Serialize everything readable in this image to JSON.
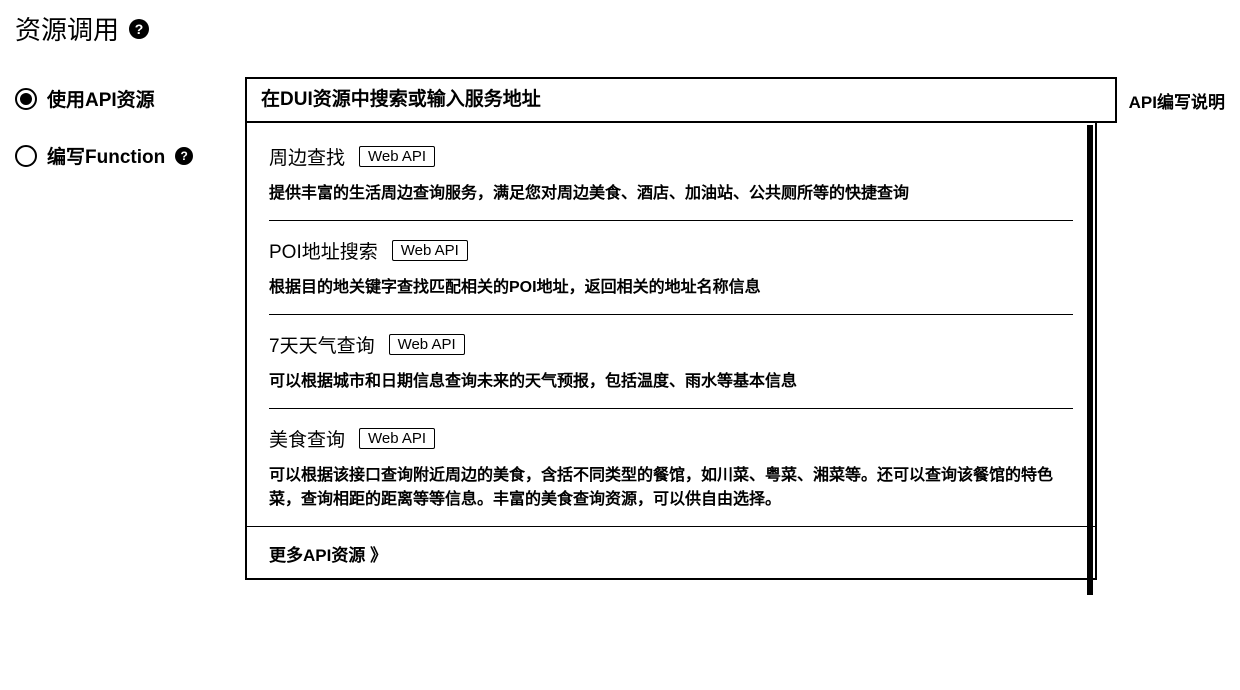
{
  "colors": {
    "text": "#000000",
    "background": "#ffffff",
    "border": "#000000"
  },
  "typography": {
    "title_fontsize": 26,
    "radio_label_fontsize": 19,
    "search_fontsize": 19,
    "item_title_fontsize": 19,
    "item_desc_fontsize": 16,
    "link_fontsize": 17,
    "badge_fontsize": 15
  },
  "header": {
    "title": "资源调用",
    "help_tooltip": "?"
  },
  "radios": {
    "use_api": {
      "label": "使用API资源",
      "selected": true
    },
    "write_function": {
      "label": "编写Function",
      "selected": false,
      "help_tooltip": "?"
    }
  },
  "search": {
    "placeholder": "在DUI资源中搜索或输入服务地址",
    "value": "",
    "doc_link_label": "API编写说明"
  },
  "api_badge_label": "Web API",
  "api_list": [
    {
      "title": "周边查找",
      "desc": "提供丰富的生活周边查询服务，满足您对周边美食、酒店、加油站、公共厕所等的快捷查询"
    },
    {
      "title": "POI地址搜索",
      "desc": "根据目的地关键字查找匹配相关的POI地址，返回相关的地址名称信息"
    },
    {
      "title": "7天天气查询",
      "desc": "可以根据城市和日期信息查询未来的天气预报，包括温度、雨水等基本信息"
    },
    {
      "title": "美食查询",
      "desc": "可以根据该接口查询附近周边的美食，含括不同类型的餐馆，如川菜、粤菜、湘菜等。还可以查询该餐馆的特色菜，查询相距的距离等等信息。丰富的美食查询资源，可以供自由选择。"
    }
  ],
  "more_link_label": "更多API资源"
}
